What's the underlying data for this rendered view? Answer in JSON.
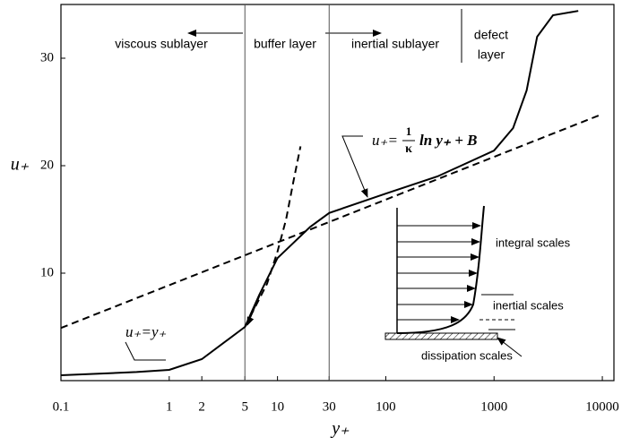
{
  "chart_data": {
    "type": "line",
    "xlabel": "y₊",
    "ylabel": "u₊",
    "xscale": "log",
    "xlim": [
      0.1,
      12800
    ],
    "ylim": [
      0,
      35
    ],
    "xticks": [
      0.1,
      1,
      2,
      5,
      10,
      30,
      100,
      1000,
      10000
    ],
    "yticks": [
      10,
      20,
      30
    ],
    "vlines": [
      5,
      30
    ],
    "series": [
      {
        "color": "#000000",
        "dash": false,
        "x": [
          0.1,
          0.5,
          1,
          2,
          5,
          6.8,
          10,
          20,
          30,
          100,
          300,
          1000,
          1500,
          2000,
          2500,
          3500,
          6000
        ],
        "values": [
          0.5,
          0.8,
          1,
          2,
          5,
          8,
          11.4,
          14.3,
          15.6,
          17.4,
          19,
          21.4,
          23.5,
          27,
          32,
          34,
          34.4
        ]
      },
      {
        "color": "#000000",
        "dash": true,
        "x": [
          0.1,
          10000
        ],
        "values": [
          4.9,
          24.8
        ]
      },
      {
        "color": "#000000",
        "dash": true,
        "x": [
          5,
          8,
          10,
          12,
          14,
          16.3
        ],
        "values": [
          5,
          9,
          12,
          15,
          18.5,
          21.8
        ]
      }
    ],
    "annotations": {
      "viscous": "viscous sublayer",
      "buffer": "buffer layer",
      "inertial": "inertial sublayer",
      "defect1": "defect",
      "defect2": "layer",
      "linear_law": "u₊=y₊",
      "log_law": {
        "lhs": "u₊=",
        "num": "1",
        "den": "κ",
        "rhs": "ln y₊ + B"
      },
      "integral": "integral scales",
      "inertial_scales": "inertial scales",
      "dissipation": "dissipation scales"
    }
  }
}
